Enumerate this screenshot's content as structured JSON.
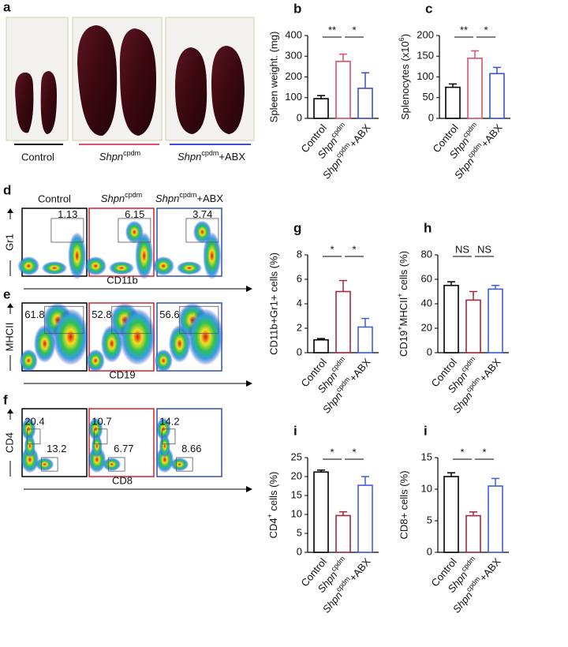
{
  "panels": {
    "a": "a",
    "d": "d",
    "e": "e",
    "f": "f"
  },
  "photos": {
    "labels": [
      "Control",
      [
        {
          "text": "Shpn",
          "style": "italic"
        },
        {
          "text": "cpdm",
          "style": "sup"
        }
      ],
      [
        {
          "text": "Shpn",
          "style": "italic"
        },
        {
          "text": "cpdm",
          "style": "sup"
        },
        {
          "text": "+ABX"
        }
      ]
    ]
  },
  "flow": {
    "columns": [
      "Control",
      [
        {
          "text": "Shpn",
          "style": "italic"
        },
        {
          "text": "cpdm",
          "style": "sup"
        }
      ],
      [
        {
          "text": "Shpn",
          "style": "italic"
        },
        {
          "text": "cpdm",
          "style": "sup"
        },
        {
          "text": "+ABX"
        }
      ]
    ],
    "rows": [
      {
        "y_label": "Gr1",
        "x_label": "CD11b",
        "gates": [
          [
            1.13
          ],
          [
            6.15
          ],
          [
            3.74
          ]
        ]
      },
      {
        "y_label": "MHCII",
        "x_label": "CD19",
        "gates": [
          [
            61.8
          ],
          [
            52.8
          ],
          [
            56.6
          ]
        ]
      },
      {
        "y_label": "CD4",
        "x_label": "CD8",
        "gates": [
          [
            20.4,
            13.2
          ],
          [
            10.7,
            6.77
          ],
          [
            14.2,
            8.66
          ]
        ]
      }
    ]
  },
  "chart_data": [
    {
      "type": "bar",
      "panel": "b",
      "ylabel": "Spleen weight. (mg)",
      "categories": [
        "Control",
        [
          {
            "text": "Shpn",
            "style": "italic"
          },
          {
            "text": "cpdm",
            "style": "sup"
          }
        ],
        [
          {
            "text": "Shpn",
            "style": "italic"
          },
          {
            "text": "cpdm",
            "style": "sup"
          },
          {
            "text": "+ABX"
          }
        ]
      ],
      "values": [
        95,
        275,
        145
      ],
      "errors": [
        15,
        35,
        75
      ],
      "colors": [
        "#000000",
        "#e0506a",
        "#3a4fd8"
      ],
      "ylim": [
        0,
        400
      ],
      "yticks": [
        0,
        100,
        200,
        300,
        400
      ],
      "significance": [
        "**",
        "*"
      ]
    },
    {
      "type": "bar",
      "panel": "c",
      "ylabel": [
        {
          "text": "Splenocytes (x10"
        },
        {
          "text": "6",
          "style": "sup"
        },
        {
          "text": ")"
        }
      ],
      "categories": [
        "Control",
        [
          {
            "text": "Shpn",
            "style": "italic"
          },
          {
            "text": "cpdm",
            "style": "sup"
          }
        ],
        [
          {
            "text": "Shpn",
            "style": "italic"
          },
          {
            "text": "cpdm",
            "style": "sup"
          },
          {
            "text": "+ABX"
          }
        ]
      ],
      "values": [
        75,
        145,
        108
      ],
      "errors": [
        8,
        18,
        15
      ],
      "colors": [
        "#000000",
        "#e0506a",
        "#3a4fd8"
      ],
      "ylim": [
        0,
        200
      ],
      "yticks": [
        0,
        50,
        100,
        150,
        200
      ],
      "significance": [
        "**",
        "*"
      ]
    },
    {
      "type": "bar",
      "panel": "g",
      "ylabel": "CD11b+Gr1+ cells (%)",
      "categories": [
        "Control",
        [
          {
            "text": "Shpn",
            "style": "italic"
          },
          {
            "text": "cpdm",
            "style": "sup"
          }
        ],
        [
          {
            "text": "Shpn",
            "style": "italic"
          },
          {
            "text": "cpdm",
            "style": "sup"
          },
          {
            "text": "+ABX"
          }
        ]
      ],
      "values": [
        1.05,
        5.0,
        2.1
      ],
      "errors": [
        0.1,
        0.9,
        0.7
      ],
      "colors": [
        "#000000",
        "#a3283e",
        "#3f5fe0"
      ],
      "ylim": [
        0,
        8
      ],
      "yticks": [
        0,
        2,
        4,
        6,
        8
      ],
      "significance": [
        "*",
        "*"
      ]
    },
    {
      "type": "bar",
      "panel": "h",
      "ylabel": [
        {
          "text": "CD19"
        },
        {
          "text": "+",
          "style": "sup"
        },
        {
          "text": "MHCII"
        },
        {
          "text": "+",
          "style": "sup"
        },
        {
          "text": " cells (%)"
        }
      ],
      "categories": [
        "Control",
        [
          {
            "text": "Shpn",
            "style": "italic"
          },
          {
            "text": "cpdm",
            "style": "sup"
          }
        ],
        [
          {
            "text": "Shpn",
            "style": "italic"
          },
          {
            "text": "cpdm",
            "style": "sup"
          },
          {
            "text": "+ABX"
          }
        ]
      ],
      "values": [
        55,
        43,
        52
      ],
      "errors": [
        3,
        7,
        3
      ],
      "colors": [
        "#000000",
        "#a3283e",
        "#3f5fe0"
      ],
      "ylim": [
        0,
        80
      ],
      "yticks": [
        0,
        20,
        40,
        60,
        80
      ],
      "significance": [
        "NS",
        "NS"
      ]
    },
    {
      "type": "bar",
      "panel": "i",
      "ylabel": [
        {
          "text": "CD4"
        },
        {
          "text": "+",
          "style": "sup"
        },
        {
          "text": " cells (%)"
        }
      ],
      "categories": [
        "Control",
        [
          {
            "text": "Shpn",
            "style": "italic"
          },
          {
            "text": "cpdm",
            "style": "sup"
          }
        ],
        [
          {
            "text": "Shpn",
            "style": "italic"
          },
          {
            "text": "cpdm",
            "style": "sup"
          },
          {
            "text": "+ABX"
          }
        ]
      ],
      "values": [
        21.2,
        9.7,
        17.7
      ],
      "errors": [
        0.5,
        1.0,
        2.3
      ],
      "colors": [
        "#000000",
        "#a3283e",
        "#3f5fe0"
      ],
      "ylim": [
        0,
        25
      ],
      "yticks": [
        0,
        5,
        10,
        15,
        20,
        25
      ],
      "significance": [
        "*",
        "*"
      ]
    },
    {
      "type": "bar",
      "panel": "i",
      "ylabel": "CD8+ cells (%)",
      "categories": [
        "Control",
        [
          {
            "text": "Shpn",
            "style": "italic"
          },
          {
            "text": "cpdm",
            "style": "sup"
          }
        ],
        [
          {
            "text": "Shpn",
            "style": "italic"
          },
          {
            "text": "cpdm",
            "style": "sup"
          },
          {
            "text": "+ABX"
          }
        ]
      ],
      "values": [
        12,
        5.8,
        10.5
      ],
      "errors": [
        0.6,
        0.6,
        1.2
      ],
      "colors": [
        "#000000",
        "#a3283e",
        "#3f5fe0"
      ],
      "ylim": [
        0,
        15
      ],
      "yticks": [
        0,
        5,
        10,
        15
      ],
      "significance": [
        "*",
        "*"
      ]
    }
  ]
}
